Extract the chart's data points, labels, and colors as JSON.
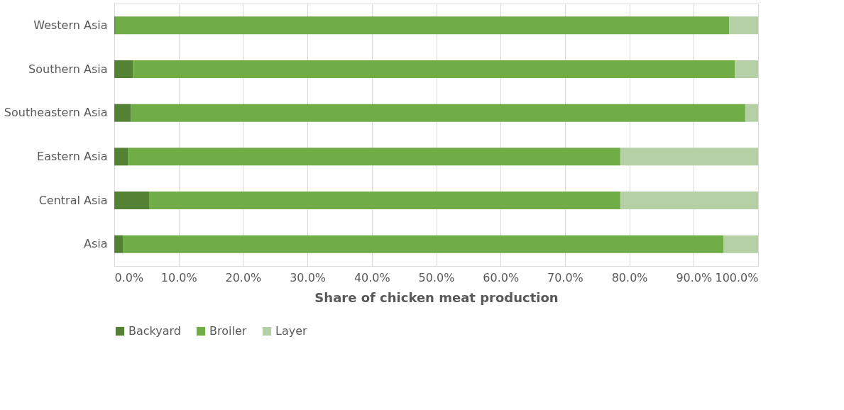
{
  "chart_data": {
    "type": "bar",
    "orientation": "horizontal",
    "stacked": true,
    "categories": [
      "Western Asia",
      "Southern Asia",
      "Southeastern Asia",
      "Eastern Asia",
      "Central Asia",
      "Asia"
    ],
    "series": [
      {
        "name": "Backyard",
        "color": "#548235",
        "values": [
          0.2,
          2.9,
          2.6,
          2.1,
          5.4,
          1.4
        ]
      },
      {
        "name": "Broiler",
        "color": "#70ad47",
        "values": [
          95.3,
          93.5,
          95.4,
          76.5,
          73.2,
          93.2
        ]
      },
      {
        "name": "Layer",
        "color": "#b5d0a5",
        "values": [
          4.5,
          3.6,
          2.0,
          21.4,
          21.4,
          5.4
        ]
      }
    ],
    "xlabel": "Share of chicken meat production",
    "xlim": [
      0,
      100
    ],
    "xticks": [
      {
        "value": 0,
        "label": "0.0%"
      },
      {
        "value": 10,
        "label": "10.0%"
      },
      {
        "value": 20,
        "label": "20.0%"
      },
      {
        "value": 30,
        "label": "30.0%"
      },
      {
        "value": 40,
        "label": "40.0%"
      },
      {
        "value": 50,
        "label": "50.0%"
      },
      {
        "value": 60,
        "label": "60.0%"
      },
      {
        "value": 70,
        "label": "70.0%"
      },
      {
        "value": 80,
        "label": "80.0%"
      },
      {
        "value": 90,
        "label": "90.0%"
      },
      {
        "value": 100,
        "label": "100.0%"
      }
    ],
    "grid": "x",
    "legend": "bottom"
  }
}
